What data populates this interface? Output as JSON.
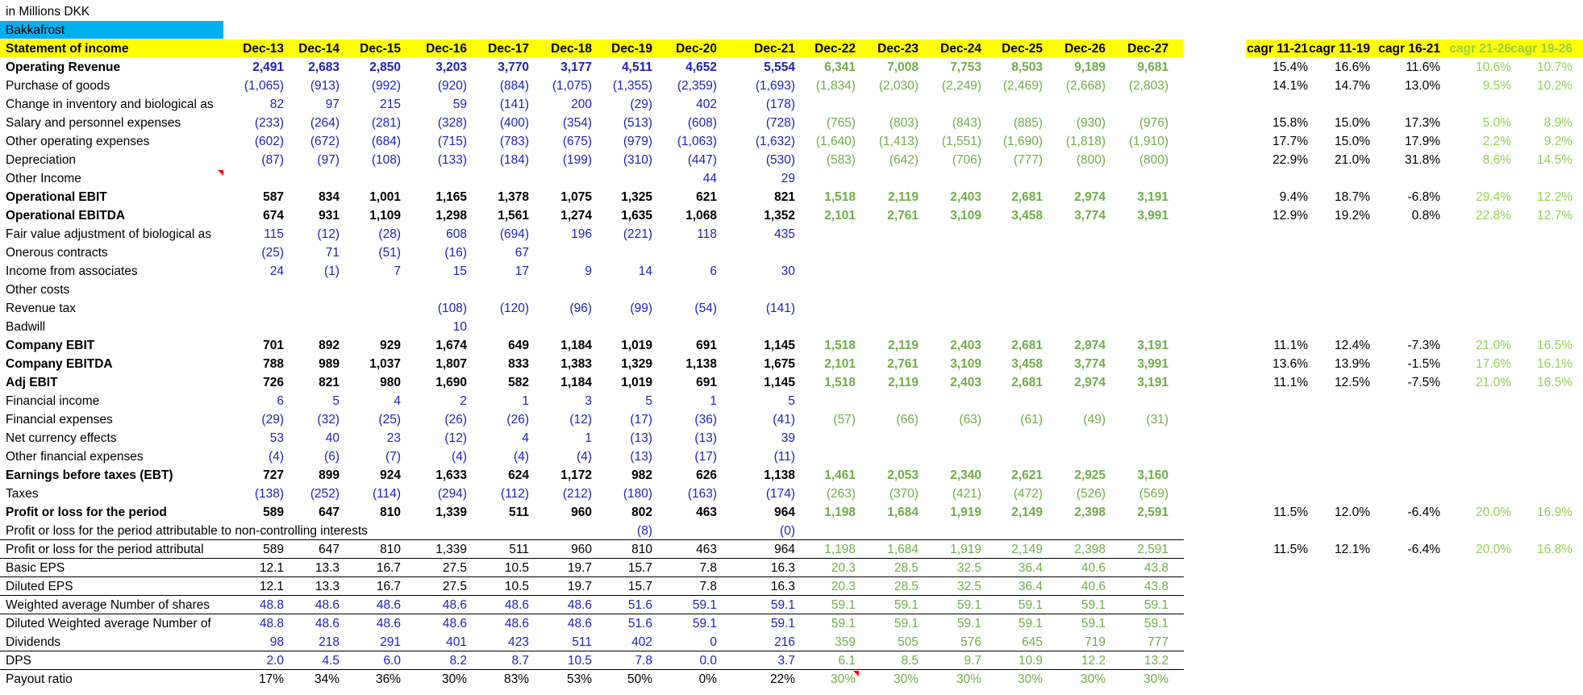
{
  "colors": {
    "blue": "#1f1fbf",
    "green": "#70ad47",
    "light_green": "#92d050",
    "black": "#000000",
    "yellow": "#ffff00",
    "cyan": "#00b0f0",
    "red": "#ff0000"
  },
  "sheet": {
    "unit_label": "in Millions DKK",
    "company": "Bakkafrost",
    "header": {
      "label": "Statement of income",
      "years": [
        "Dec-13",
        "Dec-14",
        "Dec-15",
        "Dec-16",
        "Dec-17",
        "Dec-18",
        "Dec-19",
        "Dec-20",
        "Dec-21",
        "Dec-22",
        "Dec-23",
        "Dec-24",
        "Dec-25",
        "Dec-26",
        "Dec-27"
      ],
      "cagr": [
        "cagr 11-21",
        "cagr 11-19",
        "cagr 16-21",
        "cagr 21-26",
        "cagr 19-26"
      ]
    },
    "rows": [
      {
        "label": "Operating Revenue",
        "bold": true,
        "color": "blue",
        "values": [
          "2,491",
          "2,683",
          "2,850",
          "3,203",
          "3,770",
          "3,177",
          "4,511",
          "4,652",
          "5,554",
          "6,341",
          "7,008",
          "7,753",
          "8,503",
          "9,189",
          "9,681"
        ],
        "cagr": [
          "15.4%",
          "16.6%",
          "11.6%",
          "10.6%",
          "10.7%"
        ]
      },
      {
        "label": "Purchase of goods",
        "color": "blue",
        "values": [
          "(1,065)",
          "(913)",
          "(992)",
          "(920)",
          "(884)",
          "(1,075)",
          "(1,355)",
          "(2,359)",
          "(1,693)",
          "(1,834)",
          "(2,030)",
          "(2,249)",
          "(2,469)",
          "(2,668)",
          "(2,803)"
        ],
        "cagr": [
          "14.1%",
          "14.7%",
          "13.0%",
          "9.5%",
          "10.2%"
        ]
      },
      {
        "label": "Change in inventory and biological as",
        "color": "blue",
        "values": [
          "82",
          "97",
          "215",
          "59",
          "(141)",
          "200",
          "(29)",
          "402",
          "(178)",
          "",
          "",
          "",
          "",
          "",
          ""
        ],
        "cagr": [
          "",
          "",
          "",
          "",
          ""
        ]
      },
      {
        "label": "Salary and personnel expenses",
        "color": "blue",
        "values": [
          "(233)",
          "(264)",
          "(281)",
          "(328)",
          "(400)",
          "(354)",
          "(513)",
          "(608)",
          "(728)",
          "(765)",
          "(803)",
          "(843)",
          "(885)",
          "(930)",
          "(976)"
        ],
        "cagr": [
          "15.8%",
          "15.0%",
          "17.3%",
          "5.0%",
          "8.9%"
        ]
      },
      {
        "label": "Other operating expenses",
        "color": "blue",
        "values": [
          "(602)",
          "(672)",
          "(684)",
          "(715)",
          "(783)",
          "(675)",
          "(979)",
          "(1,063)",
          "(1,632)",
          "(1,640)",
          "(1,413)",
          "(1,551)",
          "(1,690)",
          "(1,818)",
          "(1,910)"
        ],
        "cagr": [
          "17.7%",
          "15.0%",
          "17.9%",
          "2.2%",
          "9.2%"
        ]
      },
      {
        "label": "Depreciation",
        "color": "blue",
        "values": [
          "(87)",
          "(97)",
          "(108)",
          "(133)",
          "(184)",
          "(199)",
          "(310)",
          "(447)",
          "(530)",
          "(583)",
          "(642)",
          "(706)",
          "(777)",
          "(800)",
          "(800)"
        ],
        "cagr": [
          "22.9%",
          "21.0%",
          "31.8%",
          "8.6%",
          "14.5%"
        ]
      },
      {
        "label": "Other Income",
        "color": "blue",
        "values": [
          "",
          "",
          "",
          "",
          "",
          "",
          "",
          "44",
          "29",
          "",
          "",
          "",
          "",
          "",
          ""
        ],
        "cagr": [
          "",
          "",
          "",
          "",
          ""
        ]
      },
      {
        "label": "Operational EBIT",
        "bold": true,
        "color": "black",
        "values": [
          "587",
          "834",
          "1,001",
          "1,165",
          "1,378",
          "1,075",
          "1,325",
          "621",
          "821",
          "1,518",
          "2,119",
          "2,403",
          "2,681",
          "2,974",
          "3,191"
        ],
        "cagr": [
          "9.4%",
          "18.7%",
          "-6.8%",
          "29.4%",
          "12.2%"
        ]
      },
      {
        "label": "Operational EBITDA",
        "bold": true,
        "color": "black",
        "values": [
          "674",
          "931",
          "1,109",
          "1,298",
          "1,561",
          "1,274",
          "1,635",
          "1,068",
          "1,352",
          "2,101",
          "2,761",
          "3,109",
          "3,458",
          "3,774",
          "3,991"
        ],
        "cagr": [
          "12.9%",
          "19.2%",
          "0.8%",
          "22.8%",
          "12.7%"
        ]
      },
      {
        "label": "Fair value adjustment of biological as",
        "color": "blue",
        "values": [
          "115",
          "(12)",
          "(28)",
          "608",
          "(694)",
          "196",
          "(221)",
          "118",
          "435",
          "",
          "",
          "",
          "",
          "",
          ""
        ],
        "cagr": [
          "",
          "",
          "",
          "",
          ""
        ]
      },
      {
        "label": "Onerous contracts",
        "color": "blue",
        "values": [
          "(25)",
          "71",
          "(51)",
          "(16)",
          "67",
          "",
          "",
          "",
          "",
          "",
          "",
          "",
          "",
          "",
          ""
        ],
        "cagr": [
          "",
          "",
          "",
          "",
          ""
        ]
      },
      {
        "label": "Income from associates",
        "color": "blue",
        "values": [
          "24",
          "(1)",
          "7",
          "15",
          "17",
          "9",
          "14",
          "6",
          "30",
          "",
          "",
          "",
          "",
          "",
          ""
        ],
        "cagr": [
          "",
          "",
          "",
          "",
          ""
        ]
      },
      {
        "label": "Other costs",
        "color": "blue",
        "values": [
          "",
          "",
          "",
          "",
          "",
          "",
          "",
          "",
          "",
          "",
          "",
          "",
          "",
          "",
          ""
        ],
        "cagr": [
          "",
          "",
          "",
          "",
          ""
        ]
      },
      {
        "label": "Revenue tax",
        "color": "blue",
        "values": [
          "",
          "",
          "",
          "(108)",
          "(120)",
          "(96)",
          "(99)",
          "(54)",
          "(141)",
          "",
          "",
          "",
          "",
          "",
          ""
        ],
        "cagr": [
          "",
          "",
          "",
          "",
          ""
        ]
      },
      {
        "label": "Badwill",
        "color": "blue",
        "values": [
          "",
          "",
          "",
          "10",
          "",
          "",
          "",
          "",
          "",
          "",
          "",
          "",
          "",
          "",
          ""
        ],
        "cagr": [
          "",
          "",
          "",
          "",
          ""
        ]
      },
      {
        "label": "Company EBIT",
        "bold": true,
        "color": "black",
        "values": [
          "701",
          "892",
          "929",
          "1,674",
          "649",
          "1,184",
          "1,019",
          "691",
          "1,145",
          "1,518",
          "2,119",
          "2,403",
          "2,681",
          "2,974",
          "3,191"
        ],
        "cagr": [
          "11.1%",
          "12.4%",
          "-7.3%",
          "21.0%",
          "16.5%"
        ]
      },
      {
        "label": "Company EBITDA",
        "bold": true,
        "color": "black",
        "values": [
          "788",
          "989",
          "1,037",
          "1,807",
          "833",
          "1,383",
          "1,329",
          "1,138",
          "1,675",
          "2,101",
          "2,761",
          "3,109",
          "3,458",
          "3,774",
          "3,991"
        ],
        "cagr": [
          "13.6%",
          "13.9%",
          "-1.5%",
          "17.6%",
          "16.1%"
        ]
      },
      {
        "label": "Adj EBIT",
        "bold": true,
        "color": "black",
        "values": [
          "726",
          "821",
          "980",
          "1,690",
          "582",
          "1,184",
          "1,019",
          "691",
          "1,145",
          "1,518",
          "2,119",
          "2,403",
          "2,681",
          "2,974",
          "3,191"
        ],
        "cagr": [
          "11.1%",
          "12.5%",
          "-7.5%",
          "21.0%",
          "16.5%"
        ]
      },
      {
        "label": "Financial income",
        "color": "blue",
        "values": [
          "6",
          "5",
          "4",
          "2",
          "1",
          "3",
          "5",
          "1",
          "5",
          "",
          "",
          "",
          "",
          "",
          ""
        ],
        "cagr": [
          "",
          "",
          "",
          "",
          ""
        ]
      },
      {
        "label": "Financial expenses",
        "color": "blue",
        "values": [
          "(29)",
          "(32)",
          "(25)",
          "(26)",
          "(26)",
          "(12)",
          "(17)",
          "(36)",
          "(41)",
          "(57)",
          "(66)",
          "(63)",
          "(61)",
          "(49)",
          "(31)"
        ],
        "cagr": [
          "",
          "",
          "",
          "",
          ""
        ]
      },
      {
        "label": "Net currency effects",
        "color": "blue",
        "values": [
          "53",
          "40",
          "23",
          "(12)",
          "4",
          "1",
          "(13)",
          "(13)",
          "39",
          "",
          "",
          "",
          "",
          "",
          ""
        ],
        "cagr": [
          "",
          "",
          "",
          "",
          ""
        ]
      },
      {
        "label": "Other financial expenses",
        "color": "blue",
        "values": [
          "(4)",
          "(6)",
          "(7)",
          "(4)",
          "(4)",
          "(4)",
          "(13)",
          "(17)",
          "(11)",
          "",
          "",
          "",
          "",
          "",
          ""
        ],
        "cagr": [
          "",
          "",
          "",
          "",
          ""
        ]
      },
      {
        "label": "Earnings before taxes (EBT)",
        "bold": true,
        "color": "black",
        "values": [
          "727",
          "899",
          "924",
          "1,633",
          "624",
          "1,172",
          "982",
          "626",
          "1,138",
          "1,461",
          "2,053",
          "2,340",
          "2,621",
          "2,925",
          "3,160"
        ],
        "cagr": [
          "",
          "",
          "",
          "",
          ""
        ]
      },
      {
        "label": "Taxes",
        "color": "blue",
        "values": [
          "(138)",
          "(252)",
          "(114)",
          "(294)",
          "(112)",
          "(212)",
          "(180)",
          "(163)",
          "(174)",
          "(263)",
          "(370)",
          "(421)",
          "(472)",
          "(526)",
          "(569)"
        ],
        "cagr": [
          "",
          "",
          "",
          "",
          ""
        ]
      },
      {
        "label": "Profit or loss for the period",
        "bold": true,
        "color": "black",
        "values": [
          "589",
          "647",
          "810",
          "1,339",
          "511",
          "960",
          "802",
          "463",
          "964",
          "1,198",
          "1,684",
          "1,919",
          "2,149",
          "2,398",
          "2,591"
        ],
        "cagr": [
          "11.5%",
          "12.0%",
          "-6.4%",
          "20.0%",
          "16.9%"
        ]
      },
      {
        "label": "Profit or loss for the period attributable to non-controlling interests",
        "color": "blue",
        "values": [
          "",
          "",
          "",
          "",
          "",
          "",
          "(8)",
          "",
          "(0)",
          "",
          "",
          "",
          "",
          "",
          ""
        ],
        "cagr": [
          "",
          "",
          "",
          "",
          ""
        ]
      },
      {
        "label": "Profit or loss for the period attributal",
        "color": "black",
        "values": [
          "589",
          "647",
          "810",
          "1,339",
          "511",
          "960",
          "810",
          "463",
          "964",
          "1,198",
          "1,684",
          "1,919",
          "2,149",
          "2,398",
          "2,591"
        ],
        "cagr": [
          "11.5%",
          "12.1%",
          "-6.4%",
          "20.0%",
          "16.8%"
        ]
      },
      {
        "label": "Basic EPS",
        "color": "black",
        "values": [
          "12.1",
          "13.3",
          "16.7",
          "27.5",
          "10.5",
          "19.7",
          "15.7",
          "7.8",
          "16.3",
          "20.3",
          "28.5",
          "32.5",
          "36.4",
          "40.6",
          "43.8"
        ],
        "cagr": [
          "",
          "",
          "",
          "",
          ""
        ]
      },
      {
        "label": "Diluted EPS",
        "color": "black",
        "values": [
          "12.1",
          "13.3",
          "16.7",
          "27.5",
          "10.5",
          "19.7",
          "15.7",
          "7.8",
          "16.3",
          "20.3",
          "28.5",
          "32.5",
          "36.4",
          "40.6",
          "43.8"
        ],
        "cagr": [
          "",
          "",
          "",
          "",
          ""
        ]
      },
      {
        "label": "Weighted average Number of shares",
        "color": "blue",
        "values": [
          "48.8",
          "48.6",
          "48.6",
          "48.6",
          "48.6",
          "48.6",
          "51.6",
          "59.1",
          "59.1",
          "59.1",
          "59.1",
          "59.1",
          "59.1",
          "59.1",
          "59.1"
        ],
        "cagr": [
          "",
          "",
          "",
          "",
          ""
        ]
      },
      {
        "label": "Diluted Weighted average Number of",
        "color": "blue",
        "values": [
          "48.8",
          "48.6",
          "48.6",
          "48.6",
          "48.6",
          "48.6",
          "51.6",
          "59.1",
          "59.1",
          "59.1",
          "59.1",
          "59.1",
          "59.1",
          "59.1",
          "59.1"
        ],
        "cagr": [
          "",
          "",
          "",
          "",
          ""
        ]
      },
      {
        "label": "Dividends",
        "color": "blue",
        "values": [
          "98",
          "218",
          "291",
          "401",
          "423",
          "511",
          "402",
          "0",
          "216",
          "359",
          "505",
          "576",
          "645",
          "719",
          "777"
        ],
        "cagr": [
          "",
          "",
          "",
          "",
          ""
        ]
      },
      {
        "label": "DPS",
        "color": "blue",
        "values": [
          "2.0",
          "4.5",
          "6.0",
          "8.2",
          "8.7",
          "10.5",
          "7.8",
          "0.0",
          "3.7",
          "6.1",
          "8.5",
          "9.7",
          "10.9",
          "12.2",
          "13.2"
        ],
        "cagr": [
          "",
          "",
          "",
          "",
          ""
        ]
      },
      {
        "label": "Payout ratio",
        "color": "black",
        "values": [
          "17%",
          "34%",
          "36%",
          "30%",
          "83%",
          "53%",
          "50%",
          "0%",
          "22%",
          "30%",
          "30%",
          "30%",
          "30%",
          "30%",
          "30%"
        ],
        "cagr": [
          "",
          "",
          "",
          "",
          ""
        ]
      }
    ]
  }
}
